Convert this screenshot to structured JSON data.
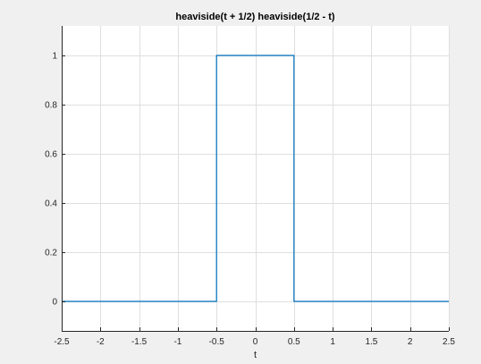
{
  "chart_data": {
    "type": "line",
    "title": "heaviside(t + 1/2) heaviside(1/2 - t)",
    "xlabel": "t",
    "ylabel": "",
    "xlim": [
      -2.5,
      2.5
    ],
    "ylim": [
      -0.12,
      1.12
    ],
    "grid": true,
    "x_ticks": [
      -2.5,
      -2,
      -1.5,
      -1,
      -0.5,
      0,
      0.5,
      1,
      1.5,
      2,
      2.5
    ],
    "x_tick_labels": [
      "-2.5",
      "-2",
      "-1.5",
      "-1",
      "-0.5",
      "0",
      "0.5",
      "1",
      "1.5",
      "2",
      "2.5"
    ],
    "y_ticks": [
      0,
      0.2,
      0.4,
      0.6,
      0.8,
      1
    ],
    "y_tick_labels": [
      "0",
      "0.2",
      "0.4",
      "0.6",
      "0.8",
      "1"
    ],
    "series": [
      {
        "color": "#0072bd",
        "x": [
          -2.5,
          -0.5,
          -0.5,
          0.5,
          0.5,
          2.5
        ],
        "y": [
          0,
          0,
          1,
          1,
          0,
          0
        ]
      }
    ]
  },
  "colors": {
    "figure_background": "#f0f0f0",
    "axes_background": "#ffffff",
    "grid": "#dfdfdf",
    "axes_edge": "#262626"
  }
}
